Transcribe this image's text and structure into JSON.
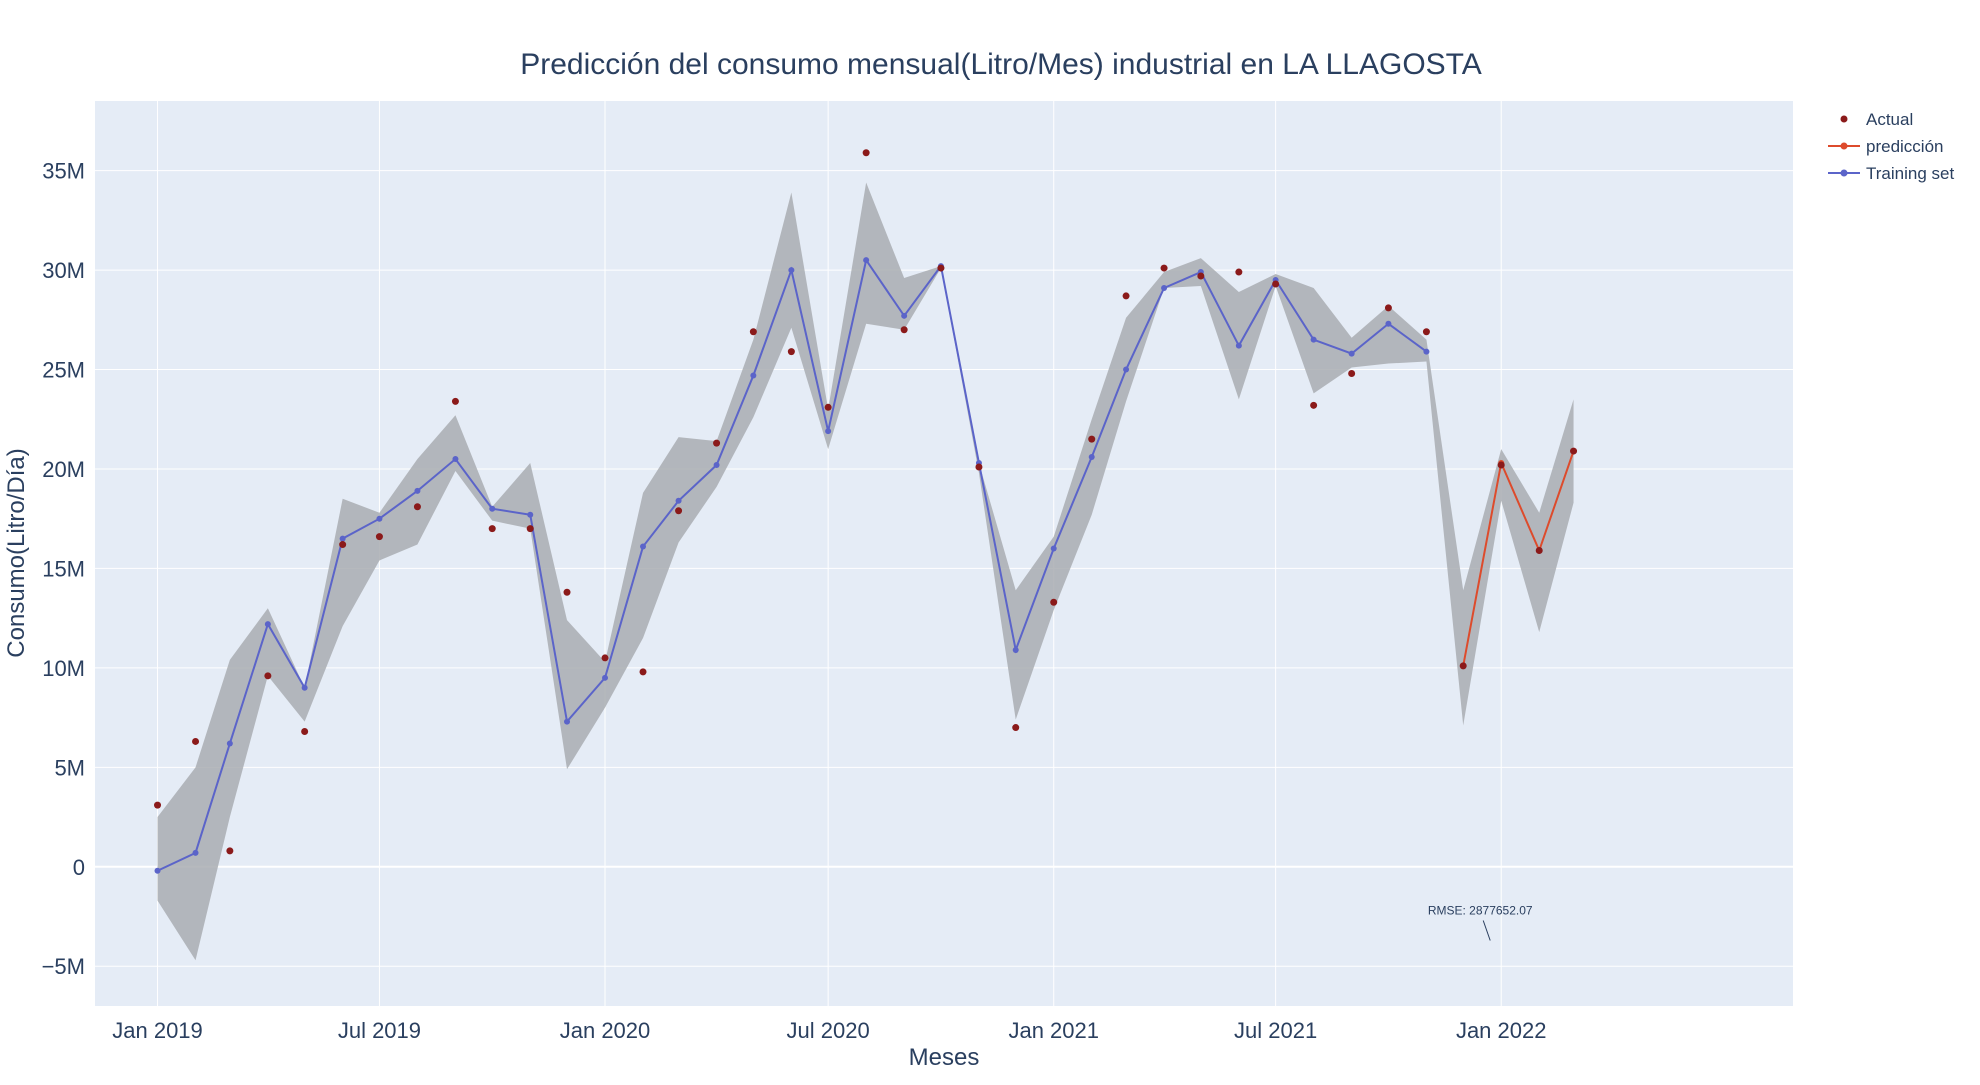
{
  "chart_data": {
    "type": "line",
    "title": "Predicción del consumo mensual(Litro/Mes) industrial en LA LLAGOSTA",
    "xlabel": "Meses",
    "ylabel": "Consumo(Litro/Día)",
    "ylim": [
      -7000000,
      38500000
    ],
    "xlim": [
      "2018-11-11",
      "2022-08-27"
    ],
    "x_ticks": [
      {
        "date": "2019-01-01",
        "label": "Jan 2019"
      },
      {
        "date": "2019-07-01",
        "label": "Jul 2019"
      },
      {
        "date": "2020-01-01",
        "label": "Jan 2020"
      },
      {
        "date": "2020-07-01",
        "label": "Jul 2020"
      },
      {
        "date": "2021-01-01",
        "label": "Jan 2021"
      },
      {
        "date": "2021-07-01",
        "label": "Jul 2021"
      },
      {
        "date": "2022-01-01",
        "label": "Jan 2022"
      }
    ],
    "y_ticks": [
      {
        "value": -5000000,
        "label": "−5M"
      },
      {
        "value": 0,
        "label": "0"
      },
      {
        "value": 5000000,
        "label": "5M"
      },
      {
        "value": 10000000,
        "label": "10M"
      },
      {
        "value": 15000000,
        "label": "15M"
      },
      {
        "value": 20000000,
        "label": "20M"
      },
      {
        "value": 25000000,
        "label": "25M"
      },
      {
        "value": 30000000,
        "label": "30M"
      },
      {
        "value": 35000000,
        "label": "35M"
      }
    ],
    "grid": true,
    "legend_position": "top-right",
    "series": [
      {
        "name": "Actual",
        "kind": "markers",
        "color": "#8b1a1a",
        "x": [
          "2019-01-01",
          "2019-02-01",
          "2019-03-01",
          "2019-04-01",
          "2019-05-01",
          "2019-06-01",
          "2019-07-01",
          "2019-08-01",
          "2019-09-01",
          "2019-10-01",
          "2019-11-01",
          "2019-12-01",
          "2020-01-01",
          "2020-02-01",
          "2020-03-01",
          "2020-04-01",
          "2020-05-01",
          "2020-06-01",
          "2020-07-01",
          "2020-08-01",
          "2020-09-01",
          "2020-10-01",
          "2020-11-01",
          "2020-12-01",
          "2021-01-01",
          "2021-02-01",
          "2021-03-01",
          "2021-04-01",
          "2021-05-01",
          "2021-06-01",
          "2021-07-01",
          "2021-08-01",
          "2021-09-01",
          "2021-10-01",
          "2021-11-01",
          "2021-12-01",
          "2022-01-01",
          "2022-02-01",
          "2022-03-01"
        ],
        "y": [
          3100000,
          6300000,
          800000,
          9600000,
          6800000,
          16200000,
          16600000,
          18100000,
          23400000,
          17000000,
          17000000,
          13800000,
          10500000,
          9800000,
          17900000,
          21300000,
          26900000,
          25900000,
          23100000,
          35900000,
          27000000,
          30100000,
          20100000,
          7000000,
          13300000,
          21500000,
          28700000,
          30100000,
          29700000,
          29900000,
          29300000,
          23200000,
          24800000,
          28100000,
          26900000,
          10100000,
          20200000,
          15900000,
          20900000
        ]
      },
      {
        "name": "predicción",
        "kind": "lines+markers",
        "color": "#dd4b2c",
        "x": [
          "2021-12-01",
          "2022-01-01",
          "2022-02-01",
          "2022-03-01"
        ],
        "y": [
          10100000,
          20300000,
          15900000,
          20900000
        ]
      },
      {
        "name": "Training set",
        "kind": "lines+markers",
        "color": "#5b64c9",
        "x": [
          "2019-01-01",
          "2019-02-01",
          "2019-03-01",
          "2019-04-01",
          "2019-05-01",
          "2019-06-01",
          "2019-07-01",
          "2019-08-01",
          "2019-09-01",
          "2019-10-01",
          "2019-11-01",
          "2019-12-01",
          "2020-01-01",
          "2020-02-01",
          "2020-03-01",
          "2020-04-01",
          "2020-05-01",
          "2020-06-01",
          "2020-07-01",
          "2020-08-01",
          "2020-09-01",
          "2020-10-01",
          "2020-11-01",
          "2020-12-01",
          "2021-01-01",
          "2021-02-01",
          "2021-03-01",
          "2021-04-01",
          "2021-05-01",
          "2021-06-01",
          "2021-07-01",
          "2021-08-01",
          "2021-09-01",
          "2021-10-01",
          "2021-11-01"
        ],
        "y": [
          -200000,
          700000,
          6200000,
          12200000,
          9000000,
          16500000,
          17500000,
          18900000,
          20500000,
          18000000,
          17700000,
          7300000,
          9500000,
          16100000,
          18400000,
          20200000,
          24700000,
          30000000,
          21900000,
          30500000,
          27700000,
          30200000,
          20300000,
          10900000,
          16000000,
          20600000,
          25000000,
          29100000,
          29900000,
          26200000,
          29500000,
          26500000,
          25800000,
          27300000,
          25900000
        ]
      }
    ],
    "confidence_band": {
      "color": "#a9adb1",
      "x": [
        "2019-01-01",
        "2019-02-01",
        "2019-03-01",
        "2019-04-01",
        "2019-05-01",
        "2019-06-01",
        "2019-07-01",
        "2019-08-01",
        "2019-09-01",
        "2019-10-01",
        "2019-11-01",
        "2019-12-01",
        "2020-01-01",
        "2020-02-01",
        "2020-03-01",
        "2020-04-01",
        "2020-05-01",
        "2020-06-01",
        "2020-07-01",
        "2020-08-01",
        "2020-09-01",
        "2020-10-01",
        "2020-11-01",
        "2020-12-01",
        "2021-01-01",
        "2021-02-01",
        "2021-03-01",
        "2021-04-01",
        "2021-05-01",
        "2021-06-01",
        "2021-07-01",
        "2021-08-01",
        "2021-09-01",
        "2021-10-01",
        "2021-11-01",
        "2021-12-01",
        "2022-01-01",
        "2022-02-01",
        "2022-03-01"
      ],
      "upper": [
        2500000,
        5000000,
        10400000,
        13000000,
        9000000,
        18500000,
        17800000,
        20500000,
        22700000,
        18100000,
        20300000,
        12400000,
        10300000,
        18800000,
        21600000,
        21400000,
        26500000,
        33900000,
        23000000,
        34400000,
        29600000,
        30200000,
        20300000,
        13900000,
        16600000,
        22500000,
        27600000,
        29900000,
        30600000,
        28900000,
        29800000,
        29100000,
        26600000,
        28200000,
        26500000,
        13900000,
        21000000,
        17800000,
        23500000
      ],
      "lower": [
        -1700000,
        -4700000,
        2500000,
        9600000,
        7300000,
        12100000,
        15400000,
        16200000,
        19900000,
        17400000,
        17000000,
        4900000,
        8000000,
        11500000,
        16300000,
        19100000,
        22600000,
        27100000,
        21000000,
        27300000,
        27000000,
        30100000,
        19800000,
        7400000,
        12900000,
        17700000,
        23400000,
        29100000,
        29200000,
        23500000,
        29200000,
        23800000,
        25100000,
        25300000,
        25400000,
        7100000,
        18400000,
        11800000,
        18300000
      ]
    },
    "annotation": {
      "text": "RMSE: 2877652.07",
      "x": "2021-12-01",
      "y": -2500000
    }
  }
}
